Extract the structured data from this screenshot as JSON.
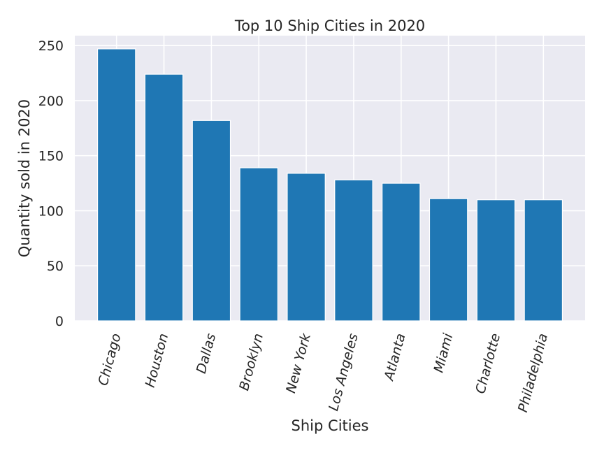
{
  "chart_data": {
    "type": "bar",
    "title": "Top 10 Ship Cities in 2020",
    "xlabel": "Ship Cities",
    "ylabel": "Quantity sold in 2020",
    "categories": [
      "Chicago",
      "Houston",
      "Dallas",
      "Brooklyn",
      "New York",
      "Los Angeles",
      "Atlanta",
      "Miami",
      "Charlotte",
      "Philadelphia"
    ],
    "values": [
      247,
      224,
      182,
      139,
      134,
      128,
      125,
      111,
      110,
      110
    ],
    "ylim": [
      0,
      259
    ],
    "yticks": [
      0,
      50,
      100,
      150,
      200,
      250
    ],
    "grid": true,
    "bar_color": "#1f77b4",
    "background_color": "#eaeaf2",
    "grid_color": "#ffffff"
  }
}
